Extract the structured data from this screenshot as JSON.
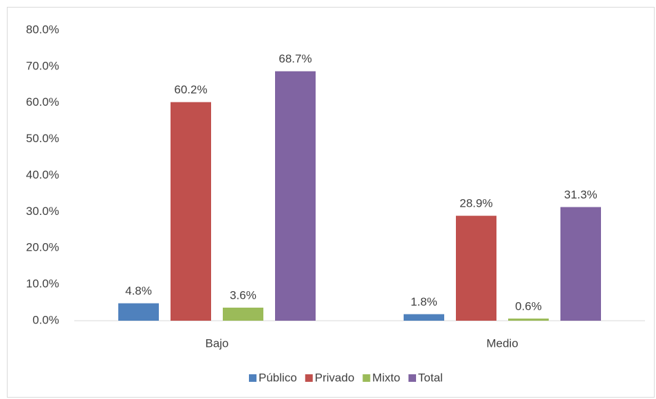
{
  "chart_data": {
    "type": "bar",
    "categories": [
      "Bajo",
      "Medio"
    ],
    "series": [
      {
        "name": "Público",
        "color": "#4f81bd",
        "values": [
          4.8,
          1.8
        ],
        "value_labels": [
          "4.8%",
          "1.8%"
        ]
      },
      {
        "name": "Privado",
        "color": "#c0504d",
        "values": [
          60.2,
          28.9
        ],
        "value_labels": [
          "60.2%",
          "28.9%"
        ]
      },
      {
        "name": "Mixto",
        "color": "#9bbb59",
        "values": [
          3.6,
          0.6
        ],
        "value_labels": [
          "3.6%",
          "0.6%"
        ]
      },
      {
        "name": "Total",
        "color": "#8064a2",
        "values": [
          68.7,
          31.3
        ],
        "value_labels": [
          "68.7%",
          "31.3%"
        ]
      }
    ],
    "ylim": [
      0,
      80
    ],
    "yticks": [
      {
        "value": 0,
        "label": "0.0%"
      },
      {
        "value": 10,
        "label": "10.0%"
      },
      {
        "value": 20,
        "label": "20.0%"
      },
      {
        "value": 30,
        "label": "30.0%"
      },
      {
        "value": 40,
        "label": "40.0%"
      },
      {
        "value": 50,
        "label": "50.0%"
      },
      {
        "value": 60,
        "label": "60.0%"
      },
      {
        "value": 70,
        "label": "70.0%"
      },
      {
        "value": 80,
        "label": "80.0%"
      }
    ],
    "grid": false,
    "legend": "bottom"
  }
}
